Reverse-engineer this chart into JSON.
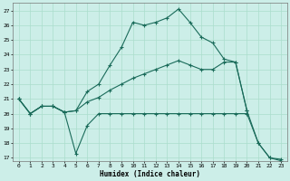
{
  "xlabel": "Humidex (Indice chaleur)",
  "bg_color": "#cceee8",
  "line_color": "#1a6b5a",
  "grid_color": "#aaddcc",
  "xlim": [
    -0.5,
    23.5
  ],
  "ylim": [
    16.8,
    27.5
  ],
  "xticks": [
    0,
    1,
    2,
    3,
    4,
    5,
    6,
    7,
    8,
    9,
    10,
    11,
    12,
    13,
    14,
    15,
    16,
    17,
    18,
    19,
    20,
    21,
    22,
    23
  ],
  "yticks": [
    17,
    18,
    19,
    20,
    21,
    22,
    23,
    24,
    25,
    26,
    27
  ],
  "series": [
    {
      "x": [
        0,
        1,
        2,
        3,
        4,
        5,
        6,
        7,
        8,
        9,
        10,
        11,
        12,
        13,
        14,
        15,
        16,
        17,
        18,
        19,
        20,
        21,
        22,
        23
      ],
      "y": [
        21.0,
        20.0,
        20.5,
        20.5,
        20.1,
        20.2,
        21.5,
        22.0,
        23.3,
        24.5,
        26.2,
        26.0,
        26.2,
        26.5,
        27.1,
        26.2,
        25.2,
        24.8,
        23.7,
        23.5,
        20.2,
        18.0,
        17.0,
        16.9
      ]
    },
    {
      "x": [
        0,
        1,
        2,
        3,
        4,
        5,
        6,
        7,
        8,
        9,
        10,
        11,
        12,
        13,
        14,
        15,
        16,
        17,
        18,
        19,
        20
      ],
      "y": [
        21.0,
        20.0,
        20.5,
        20.5,
        20.1,
        20.2,
        20.8,
        21.1,
        21.6,
        22.0,
        22.4,
        22.7,
        23.0,
        23.3,
        23.6,
        23.3,
        23.0,
        23.0,
        23.5,
        23.5,
        20.2
      ]
    },
    {
      "x": [
        0,
        1,
        2,
        3,
        4,
        5,
        6,
        7,
        8,
        9,
        10,
        11,
        12,
        13,
        14,
        15,
        16,
        17,
        18,
        19,
        20,
        21,
        22,
        23
      ],
      "y": [
        21.0,
        20.0,
        20.5,
        20.5,
        20.1,
        17.3,
        19.2,
        20.0,
        20.0,
        20.0,
        20.0,
        20.0,
        20.0,
        20.0,
        20.0,
        20.0,
        20.0,
        20.0,
        20.0,
        20.0,
        20.0,
        18.0,
        17.0,
        16.8
      ]
    }
  ]
}
